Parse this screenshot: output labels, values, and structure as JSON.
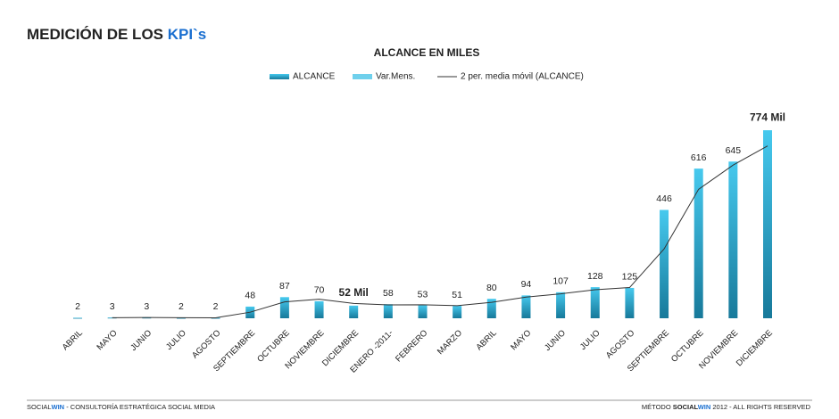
{
  "header": {
    "title": "MEDICIÓN DE LOS ",
    "title_highlight": "KPI`s"
  },
  "chart_data": {
    "type": "bar",
    "title": "ALCANCE EN MILES",
    "categories": [
      "ABRIL",
      "MAYO",
      "JUNIO",
      "JULIO",
      "AGOSTO",
      "SEPTIEMBRE",
      "OCTUBRE",
      "NOVIEMBRE",
      "DICIEMBRE",
      "ENERO -2011-",
      "FEBRERO",
      "MARZO",
      "ABRIL",
      "MAYO",
      "JUNIO",
      "JULIO",
      "AGOSTO",
      "SEPTIEMBRE",
      "OCTUBRE",
      "NOVIEMBRE",
      "DICIEMBRE"
    ],
    "series": [
      {
        "name": "ALCANCE",
        "color": "#1f8fb3",
        "values": [
          2,
          3,
          3,
          2,
          2,
          48,
          87,
          70,
          52,
          58,
          53,
          51,
          80,
          94,
          107,
          128,
          125,
          446,
          616,
          645,
          774
        ],
        "value_labels": [
          "2",
          "3",
          "3",
          "2",
          "2",
          "48",
          "87",
          "70",
          "52 Mil",
          "58",
          "53",
          "51",
          "80",
          "94",
          "107",
          "128",
          "125",
          "446",
          "616",
          "645",
          "774 Mil"
        ]
      },
      {
        "name": "Var.Mens.",
        "color": "#6fd0ec",
        "values": [
          null,
          null,
          null,
          null,
          null,
          null,
          null,
          null,
          null,
          null,
          null,
          null,
          null,
          null,
          null,
          null,
          null,
          null,
          null,
          null,
          null
        ]
      },
      {
        "name": "2 per. media móvil (ALCANCE)",
        "type": "line",
        "color": "#333333",
        "values": [
          null,
          2.5,
          3,
          2.5,
          2,
          25,
          67.5,
          78.5,
          61,
          55,
          55.5,
          52,
          65.5,
          87,
          100.5,
          117.5,
          126.5,
          285.5,
          531,
          630.5,
          709.5
        ]
      }
    ],
    "ylim": [
      0,
      800
    ],
    "grid": false
  },
  "footer": {
    "left_brand_1": "SOCIAL",
    "left_brand_2": "WIN",
    "left_text": " - CONSULTORÍA ESTRATÉGICA SOCIAL MEDIA",
    "right_text_1": "MÉTODO ",
    "right_brand_1": "SOCIAL",
    "right_brand_2": "WIN",
    "right_text_2": " 2012 - ALL RIGHTS RESERVED"
  }
}
